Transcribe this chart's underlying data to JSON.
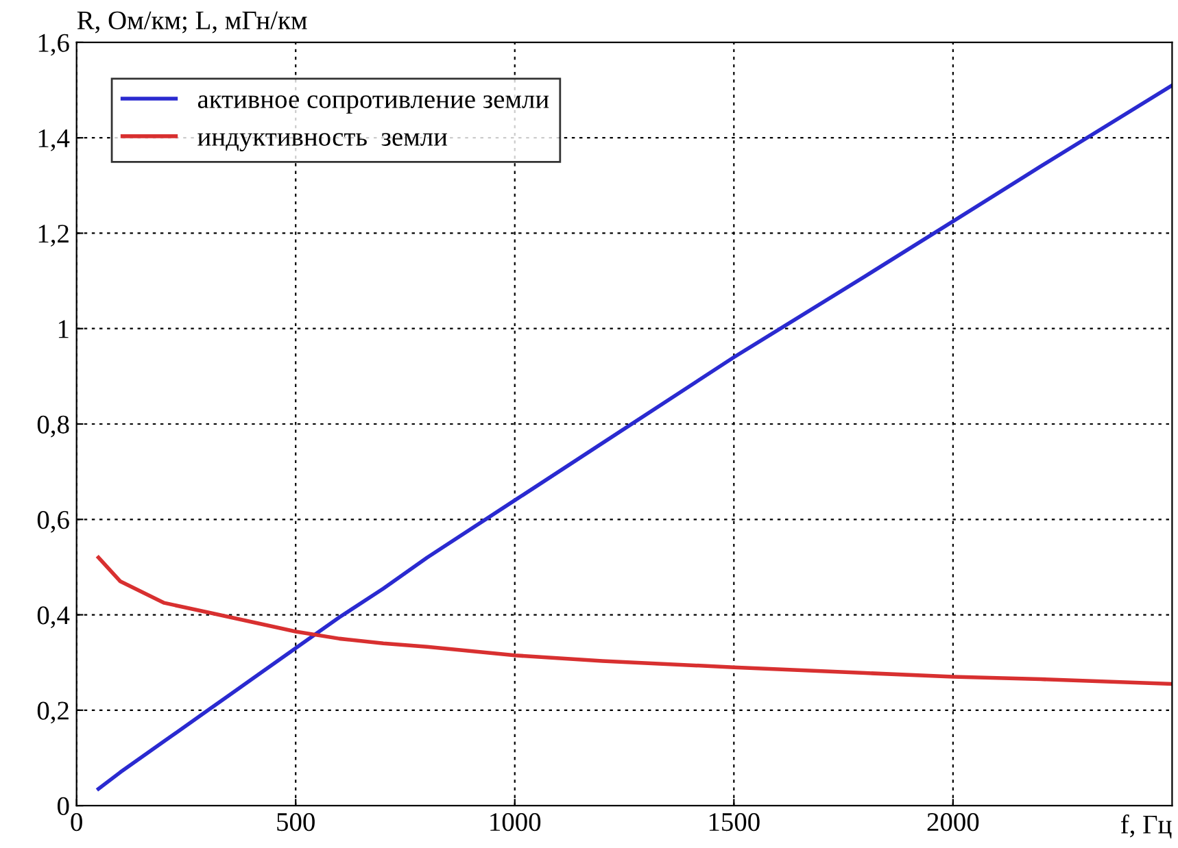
{
  "chart_data": {
    "type": "line",
    "ylabel": "R, Ом/км; L, мГн/км",
    "xlabel": "f, Гц",
    "x": [
      50,
      100,
      200,
      300,
      400,
      500,
      600,
      700,
      800,
      1000,
      1200,
      1500,
      1800,
      2000,
      2200,
      2500
    ],
    "series": [
      {
        "name": "активное сопротивление земли",
        "color": "#2a2ad0",
        "values": [
          0.035,
          0.07,
          0.135,
          0.2,
          0.265,
          0.33,
          0.395,
          0.455,
          0.52,
          0.64,
          0.76,
          0.94,
          1.11,
          1.225,
          1.34,
          1.51
        ]
      },
      {
        "name": "индуктивность  земли",
        "color": "#d83030",
        "values": [
          0.52,
          0.47,
          0.425,
          0.405,
          0.385,
          0.365,
          0.35,
          0.34,
          0.333,
          0.315,
          0.303,
          0.29,
          0.278,
          0.27,
          0.265,
          0.255
        ]
      }
    ],
    "xlim": [
      0,
      2500
    ],
    "ylim": [
      0,
      1.6
    ],
    "xticks": [
      0,
      500,
      1000,
      1500,
      2000
    ],
    "yticks": [
      0,
      {
        "value": 0.2,
        "label": "0,2"
      },
      {
        "value": 0.4,
        "label": "0,4"
      },
      {
        "value": 0.6,
        "label": "0,6"
      },
      {
        "value": 0.8,
        "label": "0,8"
      },
      1,
      {
        "value": 1.2,
        "label": "1,2"
      },
      {
        "value": 1.4,
        "label": "1,4"
      },
      {
        "value": 1.6,
        "label": "1,6"
      }
    ],
    "grid": true,
    "legend": "top left",
    "line_style": "solid"
  }
}
